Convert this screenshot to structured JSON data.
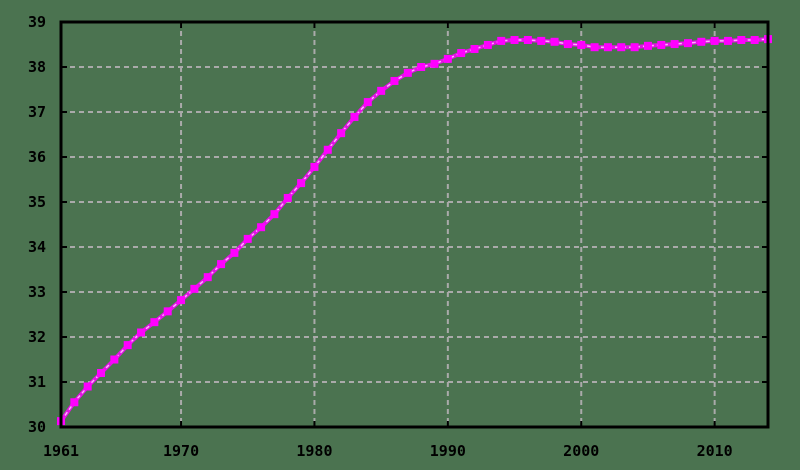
{
  "chart_data": {
    "type": "line",
    "title": "",
    "xlabel": "",
    "ylabel": "",
    "xlim": [
      1961,
      2014
    ],
    "ylim": [
      30,
      39
    ],
    "grid": true,
    "legend": null,
    "x_ticks": [
      1961,
      1970,
      1980,
      1990,
      2000,
      2010
    ],
    "x_tick_labels": [
      "1961",
      "1970",
      "1980",
      "1990",
      "2000",
      "2010"
    ],
    "y_ticks": [
      30,
      31,
      32,
      33,
      34,
      35,
      36,
      37,
      38,
      39
    ],
    "y_tick_labels": [
      "30",
      "31",
      "32",
      "33",
      "34",
      "35",
      "36",
      "37",
      "38",
      "39"
    ],
    "colors": {
      "background": "#4b7350",
      "line": "#ff00ff",
      "line_highlight": "#ffb3ff",
      "grid": "#aaaaaa",
      "axis": "#000000"
    },
    "series": [
      {
        "name": "series-1",
        "x": [
          1961,
          1962,
          1963,
          1964,
          1965,
          1966,
          1967,
          1968,
          1969,
          1970,
          1971,
          1972,
          1973,
          1974,
          1975,
          1976,
          1977,
          1978,
          1979,
          1980,
          1981,
          1982,
          1983,
          1984,
          1985,
          1986,
          1987,
          1988,
          1989,
          1990,
          1991,
          1992,
          1993,
          1994,
          1995,
          1996,
          1997,
          1998,
          1999,
          2000,
          2001,
          2002,
          2003,
          2004,
          2005,
          2006,
          2007,
          2008,
          2009,
          2010,
          2011,
          2012,
          2013,
          2014
        ],
        "values": [
          30.13,
          30.55,
          30.9,
          31.2,
          31.5,
          31.82,
          32.1,
          32.33,
          32.57,
          32.82,
          33.07,
          33.33,
          33.62,
          33.87,
          34.18,
          34.44,
          34.73,
          35.09,
          35.42,
          35.78,
          36.16,
          36.53,
          36.89,
          37.22,
          37.47,
          37.69,
          37.87,
          38.0,
          38.07,
          38.18,
          38.31,
          38.4,
          38.49,
          38.58,
          38.6,
          38.6,
          38.58,
          38.56,
          38.51,
          38.49,
          38.44,
          38.44,
          38.44,
          38.44,
          38.47,
          38.49,
          38.51,
          38.53,
          38.56,
          38.58,
          38.58,
          38.6,
          38.6,
          38.62
        ]
      }
    ]
  }
}
